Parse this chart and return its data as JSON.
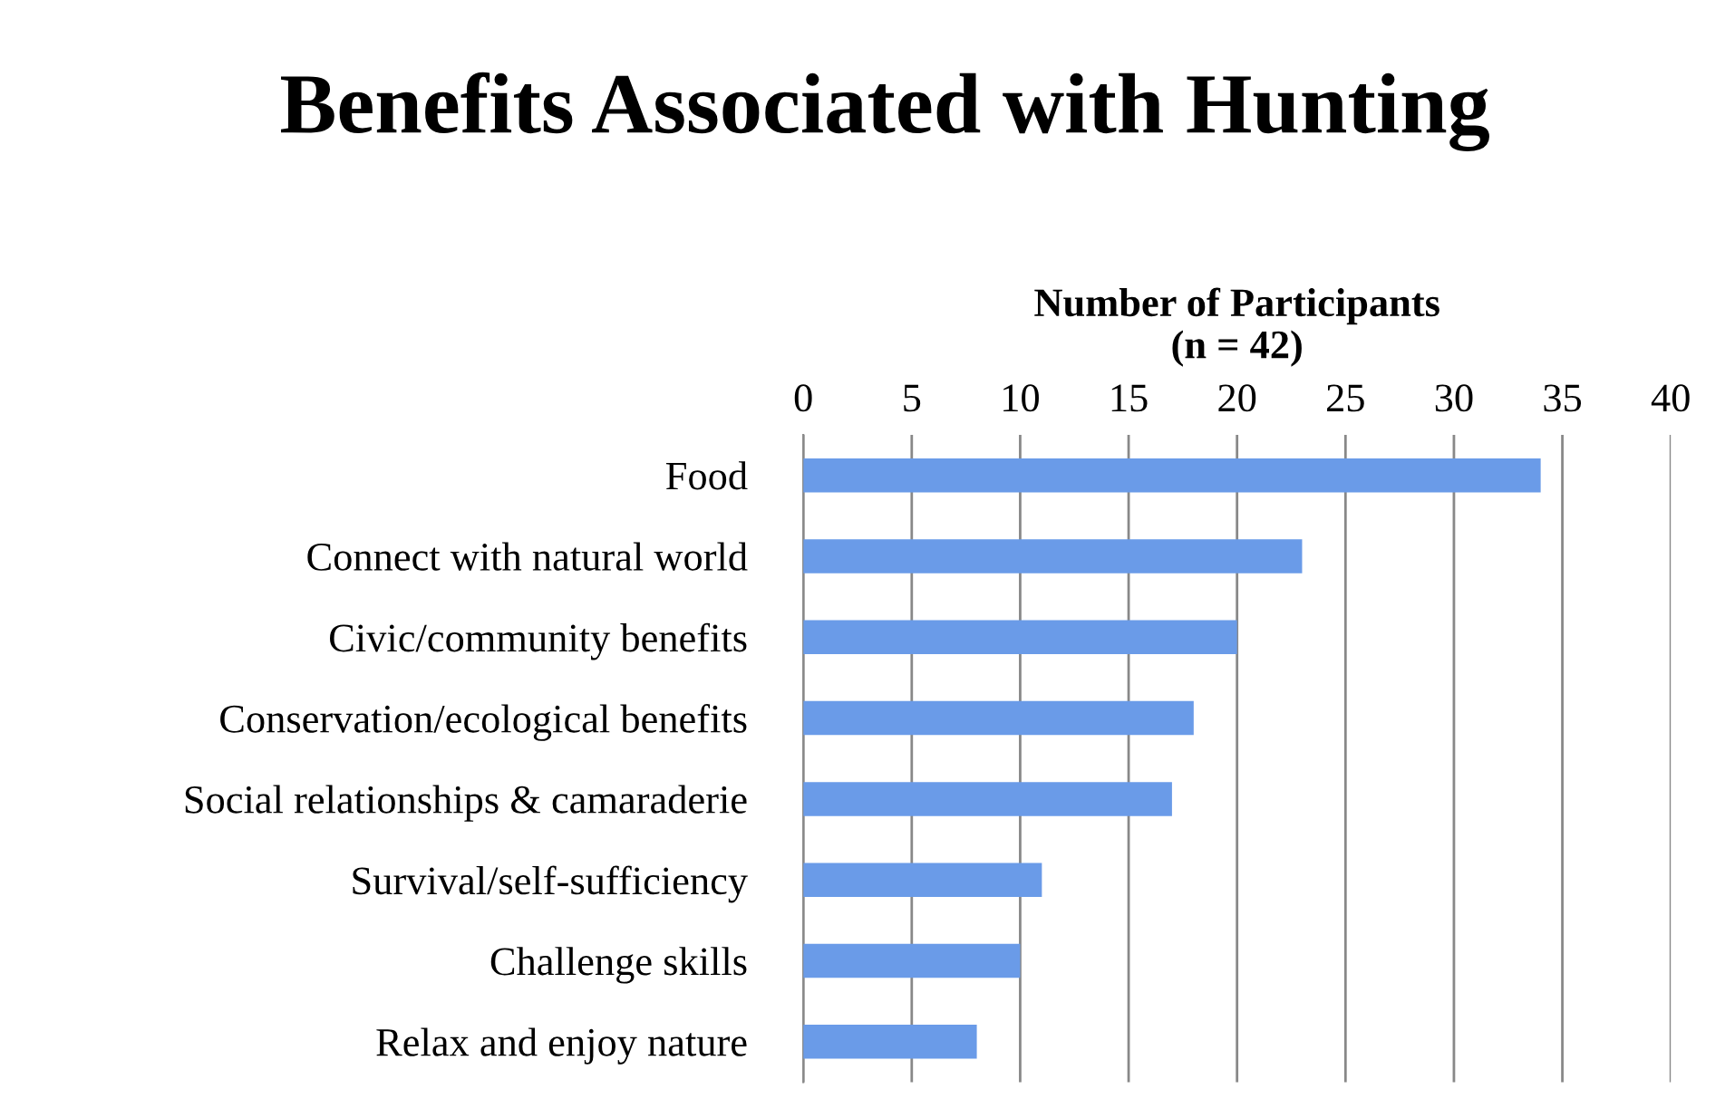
{
  "chart_data": {
    "type": "bar",
    "orientation": "horizontal",
    "title": "Benefits Associated with Hunting",
    "xlabel": "Number of Participants\n(n = 42)",
    "categories": [
      "Food",
      "Connect with natural world",
      "Civic/community benefits",
      "Conservation/ecological benefits",
      "Social relationships & camaraderie",
      "Survival/self-sufficiency",
      "Challenge skills",
      "Relax and enjoy nature"
    ],
    "values": [
      34,
      23,
      20,
      18,
      17,
      11,
      10,
      8
    ],
    "color": "#6a9be8",
    "xlim": [
      0,
      40
    ],
    "xticks": [
      0,
      5,
      10,
      15,
      20,
      25,
      30,
      35,
      40
    ],
    "grid": "x",
    "legend": false
  }
}
